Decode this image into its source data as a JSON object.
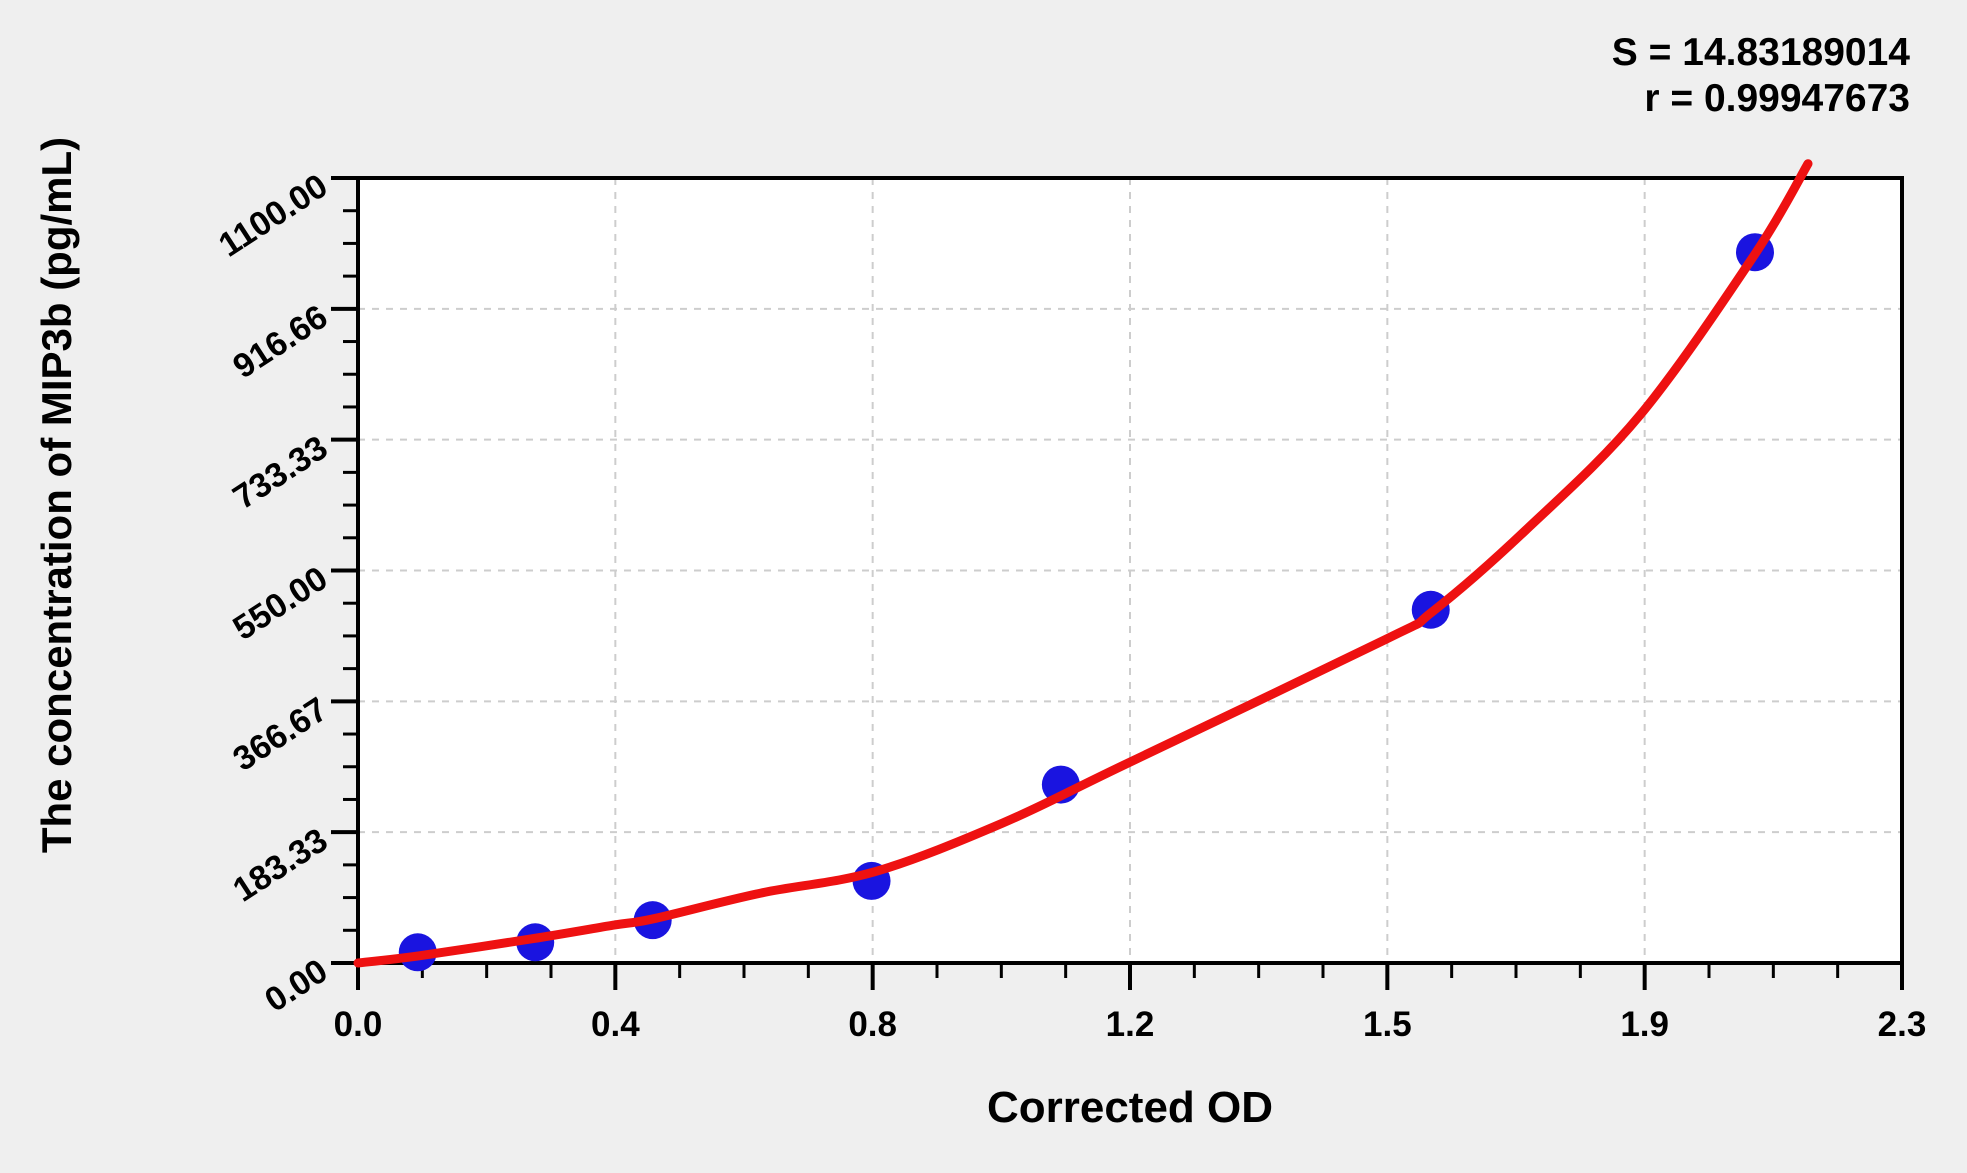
{
  "stats": {
    "s_line": "S = 14.83189014",
    "r_line": "r = 0.99947673"
  },
  "chart_data": {
    "type": "scatter",
    "title": "",
    "xlabel": "Corrected OD",
    "ylabel": "The concentration of MIP3b (pg/mL)",
    "xlim": [
      0,
      2.3
    ],
    "ylim": [
      0,
      1100
    ],
    "x_tick_labels": [
      "0.0",
      "0.4",
      "0.8",
      "1.2",
      "1.5",
      "1.9",
      "2.3"
    ],
    "y_tick_labels": [
      "0.00",
      "183.33",
      "366.67",
      "550.00",
      "733.33",
      "916.66",
      "1100.00"
    ],
    "minor_ticks_per_major": 3,
    "grid": {
      "show": true,
      "style": "dashed",
      "at": "major-ticks"
    },
    "legend": null,
    "stats": {
      "S": "14.83189014",
      "r": "0.99947673"
    },
    "series": [
      {
        "name": "standard-points",
        "type": "scatter",
        "points": [
          {
            "od": 0.089,
            "conc": 15
          },
          {
            "od": 0.264,
            "conc": 29
          },
          {
            "od": 0.439,
            "conc": 60
          },
          {
            "od": 0.765,
            "conc": 115
          },
          {
            "od": 1.047,
            "conc": 250
          },
          {
            "od": 1.598,
            "conc": 495
          },
          {
            "od": 2.081,
            "conc": 996
          }
        ]
      },
      {
        "name": "fitted-curve",
        "type": "line",
        "points": [
          {
            "od": 0.0,
            "conc": 0
          },
          {
            "od": 0.09,
            "conc": 10
          },
          {
            "od": 0.26,
            "conc": 34
          },
          {
            "od": 0.38,
            "conc": 53
          },
          {
            "od": 0.44,
            "conc": 62
          },
          {
            "od": 0.6,
            "conc": 98
          },
          {
            "od": 0.77,
            "conc": 128
          },
          {
            "od": 0.96,
            "conc": 196
          },
          {
            "od": 1.14,
            "conc": 277
          },
          {
            "od": 1.53,
            "conc": 453
          },
          {
            "od": 1.6,
            "conc": 492
          },
          {
            "od": 1.74,
            "conc": 607
          },
          {
            "od": 1.91,
            "conc": 768
          },
          {
            "od": 2.08,
            "conc": 992
          },
          {
            "od": 2.16,
            "conc": 1120
          }
        ]
      }
    ],
    "colors": {
      "curve": "#ee1111",
      "points": "#1a14e0",
      "grid": "#cdcdcd",
      "axis": "#000000",
      "plot_background": "#ffffff",
      "page_background": "#efefef",
      "text": "#000000"
    }
  }
}
